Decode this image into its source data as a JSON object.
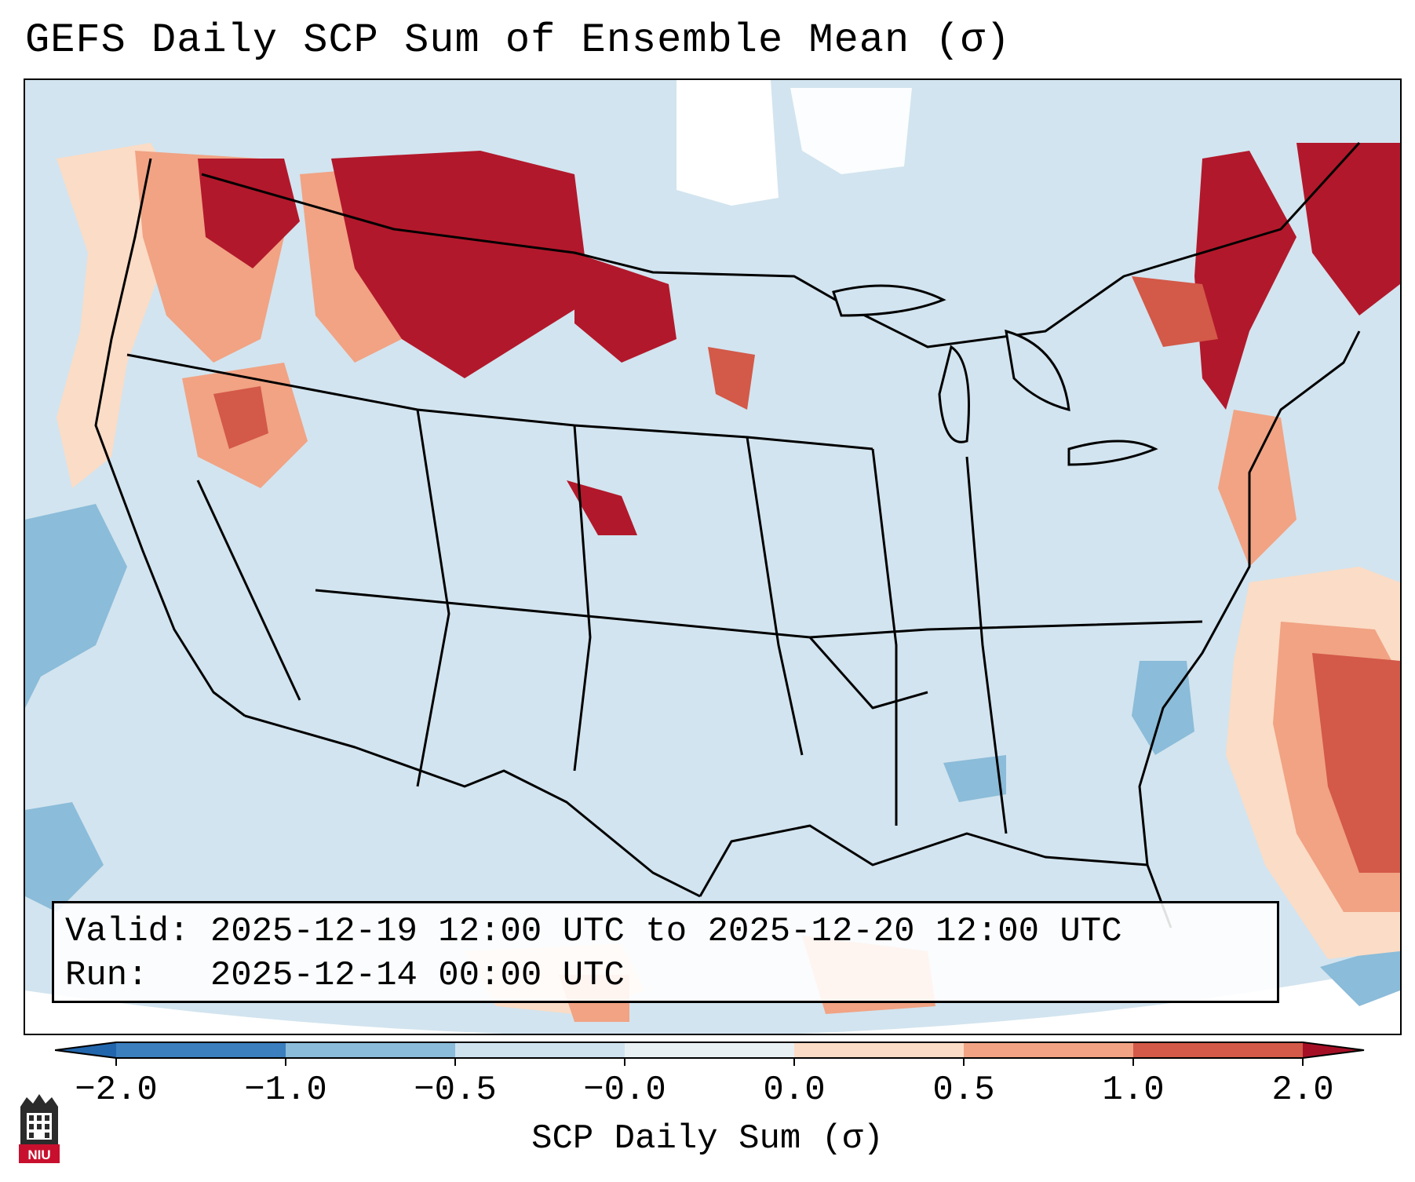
{
  "title": "GEFS Daily SCP Sum of Ensemble Mean (σ)",
  "info": {
    "valid_line": "Valid: 2025-12-19 12:00 UTC to 2025-12-20 12:00 UTC",
    "run_line": "Run:   2025-12-14 00:00 UTC"
  },
  "colorbar": {
    "label": "SCP Daily Sum (σ)",
    "ticks": [
      "−2.0",
      "−1.0",
      "−0.5",
      "−0.0",
      "0.0",
      "0.5",
      "1.0",
      "2.0"
    ],
    "colors": [
      "#3b7fbf",
      "#8bbcd9",
      "#cfe3ef",
      "#e9f0f4",
      "#fbdcc6",
      "#f1a384",
      "#d35948",
      "#b2182b"
    ],
    "under_color": "#2166ac",
    "over_color": "#a50f26"
  },
  "logo": {
    "text": "NIU",
    "color": "#c8102e"
  }
}
